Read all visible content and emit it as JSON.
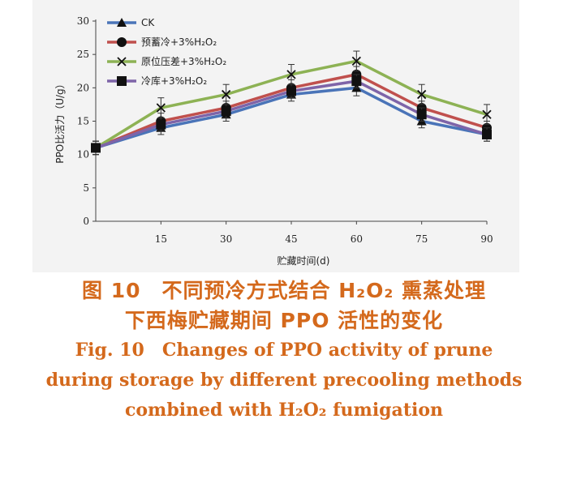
{
  "caption": {
    "cn_line1": "图 10　不同预冷方式结合 H₂O₂ 熏蒸处理",
    "cn_line2": "下西梅贮藏期间 PPO 活性的变化",
    "en_line1": "Fig. 10　Changes of PPO activity of prune",
    "en_line2": "during storage by different precooling methods",
    "en_line3": "combined with H₂O₂ fumigation"
  },
  "chart_data": {
    "type": "line",
    "xlabel": "贮藏时间(d)",
    "ylabel": "PPO比活力（U/g）",
    "x": [
      0,
      15,
      30,
      45,
      60,
      75,
      90
    ],
    "x_tick_labels": [
      "15",
      "30",
      "45",
      "60",
      "75",
      "90"
    ],
    "y_ticks": [
      0,
      5,
      10,
      15,
      20,
      25,
      30
    ],
    "xlim": [
      0,
      90
    ],
    "ylim": [
      0,
      30
    ],
    "grid": false,
    "legend_position": "top-left",
    "series": [
      {
        "name": "CK",
        "values": [
          11,
          14,
          16,
          19,
          20,
          15,
          13
        ],
        "error": [
          1.0,
          1.0,
          1.0,
          1.0,
          1.2,
          1.0,
          1.0
        ],
        "color": "#4a74b8",
        "marker": "triangle"
      },
      {
        "name": "预蓄冷+3%H₂O₂",
        "values": [
          11,
          15,
          17,
          20,
          22,
          17,
          14
        ],
        "error": [
          1.0,
          1.2,
          1.0,
          1.2,
          1.2,
          1.0,
          1.0
        ],
        "color": "#c0504d",
        "marker": "circle"
      },
      {
        "name": "原位压差+3%H₂O₂",
        "values": [
          11,
          17,
          19,
          22,
          24,
          19,
          16
        ],
        "error": [
          1.0,
          1.5,
          1.5,
          1.5,
          1.5,
          1.5,
          1.5
        ],
        "color": "#8db254",
        "marker": "x"
      },
      {
        "name": "冷库+3%H₂O₂",
        "values": [
          11,
          14.5,
          16.5,
          19.5,
          21,
          16,
          13
        ],
        "error": [
          1.0,
          1.0,
          1.0,
          1.0,
          1.0,
          1.0,
          1.0
        ],
        "color": "#7e64a8",
        "marker": "square"
      }
    ]
  }
}
